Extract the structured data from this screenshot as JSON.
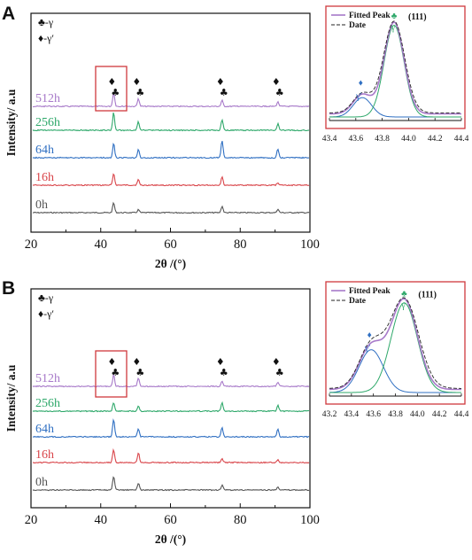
{
  "panels": [
    {
      "label": "A",
      "ylabel": "Intensity/ a.u",
      "xlabel": "2θ /(°)",
      "xticks": [
        "20",
        "40",
        "60",
        "80",
        "100"
      ],
      "legend": [
        {
          "symbol": "♣",
          "text": "-γ"
        },
        {
          "symbol": "♦",
          "text": "-γ′"
        }
      ],
      "inset": {
        "legend": [
          "Fitted Peak",
          "Date"
        ],
        "xticks": [
          "43.4",
          "43.6",
          "43.8",
          "44.0",
          "44.2",
          "44.4"
        ],
        "annotations": {
          "gamma_prime_symbol": "♦",
          "gamma_prime": "γ′",
          "gamma_symbol": "♣",
          "gamma": "γ",
          "miller": "(111)"
        }
      }
    },
    {
      "label": "B",
      "ylabel": "Intensity/ a.u",
      "xlabel": "2θ /(°)",
      "xticks": [
        "20",
        "40",
        "60",
        "80",
        "100"
      ],
      "legend": [
        {
          "symbol": "♣",
          "text": "-γ"
        },
        {
          "symbol": "♦",
          "text": "-γ′"
        }
      ],
      "inset": {
        "legend": [
          "Fitted Peak",
          "Date"
        ],
        "xticks": [
          "43.2",
          "43.4",
          "43.6",
          "43.8",
          "44.0",
          "44.2",
          "44.4"
        ],
        "annotations": {
          "gamma_prime_symbol": "♦",
          "gamma_prime": "γ′",
          "gamma_symbol": "♣",
          "gamma": "γ",
          "miller": "(111)"
        }
      }
    }
  ],
  "peak_markers": [
    {
      "x": 43.7,
      "symbols": [
        "♦",
        "♣"
      ]
    },
    {
      "x": 50.8,
      "symbols": [
        "♦",
        "♣"
      ]
    },
    {
      "x": 74.8,
      "symbols": [
        "♦",
        "♣"
      ]
    },
    {
      "x": 90.8,
      "symbols": [
        "♦",
        "♣"
      ]
    }
  ],
  "colors": {
    "0h": "#555555",
    "16h": "#d9454a",
    "64h": "#2f6fc2",
    "256h": "#2ea86a",
    "512h": "#a779c9",
    "frame": "#d0393d",
    "fitted": "#a779c9",
    "fit_gamma_prime": "#2f6fc2",
    "fit_gamma": "#2ea86a"
  },
  "chart_data": [
    {
      "type": "line",
      "title": "",
      "xlabel": "2θ /(°)",
      "ylabel": "Intensity/ a.u",
      "xlim": [
        20,
        100
      ],
      "grid": false,
      "series": [
        {
          "name": "0h",
          "peaks": [
            [
              43.7,
              0.4
            ],
            [
              50.8,
              0.12
            ],
            [
              74.8,
              0.26
            ],
            [
              90.8,
              0.14
            ]
          ]
        },
        {
          "name": "16h",
          "peaks": [
            [
              43.7,
              0.48
            ],
            [
              50.8,
              0.22
            ],
            [
              74.8,
              0.35
            ],
            [
              90.8,
              0.1
            ]
          ]
        },
        {
          "name": "64h",
          "peaks": [
            [
              43.7,
              0.58
            ],
            [
              50.8,
              0.32
            ],
            [
              74.8,
              0.7
            ],
            [
              90.8,
              0.36
            ]
          ]
        },
        {
          "name": "256h",
          "peaks": [
            [
              43.7,
              0.72
            ],
            [
              50.8,
              0.34
            ],
            [
              74.8,
              0.44
            ],
            [
              90.8,
              0.26
            ]
          ]
        },
        {
          "name": "512h",
          "peaks": [
            [
              43.7,
              0.55
            ],
            [
              50.8,
              0.3
            ],
            [
              74.8,
              0.24
            ],
            [
              90.8,
              0.18
            ]
          ]
        }
      ]
    },
    {
      "type": "line",
      "title": "",
      "xlabel": "",
      "ylabel": "",
      "xlim": [
        43.4,
        44.4
      ],
      "grid": false,
      "series": [
        {
          "name": "Fitted Peak",
          "fit_components": [
            {
              "center": 43.65,
              "height": 0.19,
              "width": 0.07
            },
            {
              "center": 43.89,
              "height": 0.9,
              "width": 0.075
            }
          ]
        },
        {
          "name": "Date",
          "fit_components": [
            {
              "center": 43.65,
              "height": 0.19,
              "width": 0.07
            },
            {
              "center": 43.89,
              "height": 0.9,
              "width": 0.08
            }
          ]
        }
      ]
    },
    {
      "type": "line",
      "title": "",
      "xlabel": "2θ /(°)",
      "ylabel": "Intensity/ a.u",
      "xlim": [
        20,
        100
      ],
      "grid": false,
      "series": [
        {
          "name": "0h",
          "peaks": [
            [
              43.7,
              0.55
            ],
            [
              50.8,
              0.28
            ],
            [
              74.8,
              0.2
            ],
            [
              90.8,
              0.14
            ]
          ]
        },
        {
          "name": "16h",
          "peaks": [
            [
              43.7,
              0.52
            ],
            [
              50.8,
              0.4
            ],
            [
              74.8,
              0.16
            ],
            [
              90.8,
              0.1
            ]
          ]
        },
        {
          "name": "64h",
          "peaks": [
            [
              43.7,
              0.72
            ],
            [
              50.8,
              0.34
            ],
            [
              74.8,
              0.38
            ],
            [
              90.8,
              0.3
            ]
          ]
        },
        {
          "name": "256h",
          "peaks": [
            [
              43.7,
              0.34
            ],
            [
              50.8,
              0.22
            ],
            [
              74.8,
              0.36
            ],
            [
              90.8,
              0.24
            ]
          ]
        },
        {
          "name": "512h",
          "peaks": [
            [
              43.7,
              0.46
            ],
            [
              50.8,
              0.34
            ],
            [
              74.8,
              0.22
            ],
            [
              90.8,
              0.16
            ]
          ]
        }
      ]
    },
    {
      "type": "line",
      "title": "",
      "xlabel": "",
      "ylabel": "",
      "xlim": [
        43.2,
        44.4
      ],
      "grid": false,
      "series": [
        {
          "name": "Fitted Peak",
          "fit_components": [
            {
              "center": 43.58,
              "height": 0.42,
              "width": 0.11
            },
            {
              "center": 43.88,
              "height": 0.88,
              "width": 0.12
            }
          ]
        },
        {
          "name": "Date",
          "fit_components": [
            {
              "center": 43.58,
              "height": 0.42,
              "width": 0.11
            },
            {
              "center": 43.88,
              "height": 0.88,
              "width": 0.13
            }
          ]
        }
      ]
    }
  ]
}
